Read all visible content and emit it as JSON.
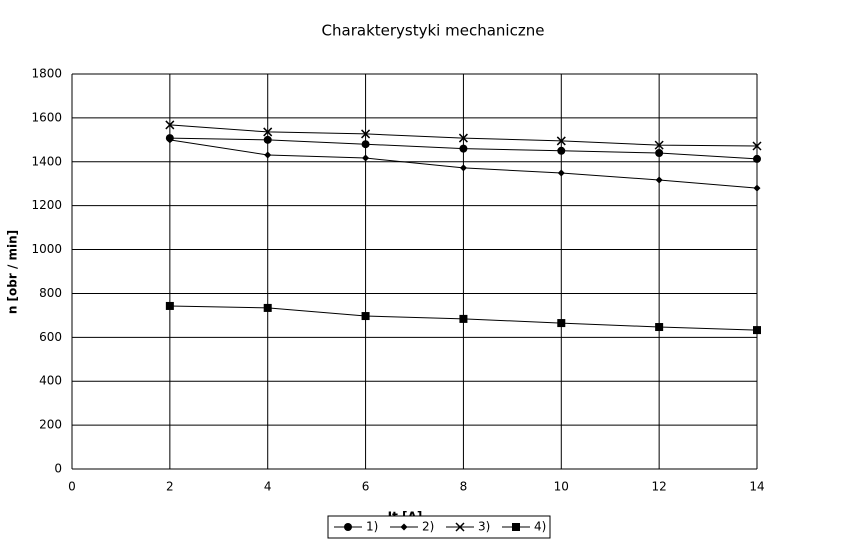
{
  "chart_data": {
    "type": "line",
    "title": "Charakterystyki mechaniczne",
    "x_label": "It [A]",
    "y_label": "n [obr / min]",
    "xlim": [
      0,
      14
    ],
    "xticks": [
      0,
      2,
      4,
      6,
      8,
      10,
      12,
      14
    ],
    "ylim": [
      0,
      1800
    ],
    "yticks": [
      0,
      200,
      400,
      600,
      800,
      1000,
      1200,
      1400,
      1600,
      1800
    ],
    "grid": true,
    "legend": "bottom",
    "x": [
      2,
      4,
      6,
      8,
      10,
      12,
      14
    ],
    "series": [
      {
        "name": "1)",
        "color": "#000000",
        "marker": "circle",
        "values": [
          1508,
          1500,
          1480,
          1460,
          1450,
          1440,
          1413
        ]
      },
      {
        "name": "2)",
        "color": "#000000",
        "marker": "diamond",
        "values": [
          1500,
          1431,
          1417,
          1372,
          1349,
          1317,
          1280
        ]
      },
      {
        "name": "3)",
        "color": "#000000",
        "marker": "cross",
        "values": [
          1568,
          1536,
          1527,
          1508,
          1495,
          1476,
          1472
        ]
      },
      {
        "name": "4)",
        "color": "#000000",
        "marker": "square",
        "values": [
          743,
          734,
          697,
          684,
          665,
          647,
          633
        ]
      }
    ]
  }
}
